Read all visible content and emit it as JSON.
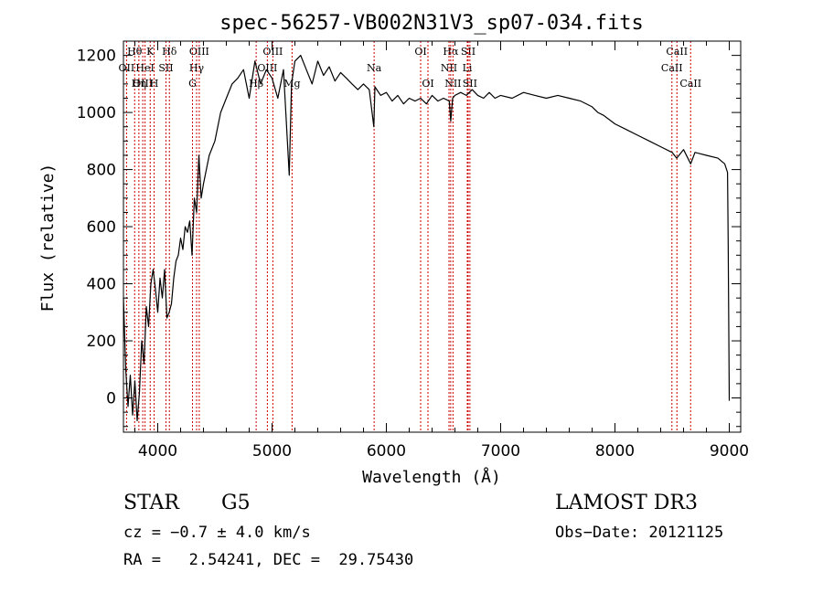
{
  "chart_data": {
    "type": "line",
    "title": "spec-56257-VB002N31V3_sp07-034.fits",
    "xlabel": "Wavelength (Å)",
    "ylabel": "Flux (relative)",
    "xlim": [
      3700,
      9100
    ],
    "ylim": [
      -120,
      1250
    ],
    "x_ticks": [
      4000,
      5000,
      6000,
      7000,
      8000,
      9000
    ],
    "y_ticks": [
      0,
      200,
      400,
      600,
      800,
      1000,
      1200
    ],
    "grid": false,
    "line_color": "#000000",
    "marker_color": "#cc0000",
    "series": [
      {
        "x": [
          3700,
          3720,
          3740,
          3760,
          3780,
          3800,
          3820,
          3840,
          3860,
          3880,
          3900,
          3920,
          3940,
          3960,
          3980,
          4000,
          4020,
          4040,
          4060,
          4080,
          4100,
          4120,
          4140,
          4160,
          4180,
          4200,
          4220,
          4240,
          4260,
          4280,
          4300,
          4320,
          4340,
          4360,
          4380,
          4400,
          4450,
          4500,
          4550,
          4600,
          4650,
          4700,
          4750,
          4800,
          4850,
          4900,
          4950,
          5000,
          5050,
          5100,
          5150,
          5170,
          5200,
          5250,
          5300,
          5350,
          5400,
          5450,
          5500,
          5550,
          5600,
          5650,
          5700,
          5750,
          5800,
          5850,
          5890,
          5900,
          5950,
          6000,
          6050,
          6100,
          6150,
          6200,
          6250,
          6300,
          6350,
          6400,
          6450,
          6500,
          6550,
          6563,
          6580,
          6600,
          6650,
          6700,
          6750,
          6800,
          6850,
          6900,
          6950,
          7000,
          7100,
          7200,
          7300,
          7400,
          7500,
          7600,
          7700,
          7800,
          7850,
          7900,
          8000,
          8100,
          8200,
          8300,
          8400,
          8500,
          8540,
          8600,
          8662,
          8700,
          8800,
          8900,
          8960,
          8985,
          8990,
          9000
        ],
        "y": [
          350,
          100,
          -30,
          80,
          -60,
          60,
          -80,
          20,
          200,
          120,
          320,
          250,
          400,
          450,
          380,
          300,
          420,
          350,
          450,
          280,
          300,
          330,
          420,
          480,
          500,
          560,
          520,
          600,
          580,
          620,
          500,
          700,
          650,
          850,
          700,
          750,
          850,
          900,
          1000,
          1050,
          1100,
          1120,
          1150,
          1050,
          1180,
          1100,
          1150,
          1120,
          1050,
          1150,
          780,
          1100,
          1180,
          1200,
          1150,
          1100,
          1180,
          1130,
          1160,
          1110,
          1140,
          1120,
          1100,
          1080,
          1100,
          1080,
          950,
          1090,
          1060,
          1070,
          1040,
          1060,
          1030,
          1050,
          1040,
          1050,
          1030,
          1060,
          1040,
          1050,
          1040,
          970,
          1050,
          1060,
          1070,
          1060,
          1080,
          1060,
          1050,
          1070,
          1050,
          1060,
          1050,
          1070,
          1060,
          1050,
          1060,
          1050,
          1040,
          1020,
          1000,
          990,
          960,
          940,
          920,
          900,
          880,
          860,
          840,
          870,
          820,
          860,
          850,
          840,
          820,
          790,
          550,
          -10
        ]
      }
    ],
    "line_markers": [
      {
        "label": "Hθ",
        "x": 3798,
        "row": 0
      },
      {
        "label": "OII",
        "x": 3727,
        "row": 1
      },
      {
        "label": "OIII",
        "x": 3869,
        "row": 2
      },
      {
        "label": "K",
        "x": 3934,
        "row": 0
      },
      {
        "label": "HeI",
        "x": 3889,
        "row": 1
      },
      {
        "label": "Hη",
        "x": 3835,
        "row": 2
      },
      {
        "label": "Hδ",
        "x": 4102,
        "row": 0
      },
      {
        "label": "SII",
        "x": 4072,
        "row": 1
      },
      {
        "label": "H",
        "x": 3968,
        "row": 2
      },
      {
        "label": "OIII",
        "x": 4363,
        "row": 0
      },
      {
        "label": "Hγ",
        "x": 4340,
        "row": 1
      },
      {
        "label": "G",
        "x": 4304,
        "row": 2
      },
      {
        "label": "OIII",
        "x": 5007,
        "row": 0
      },
      {
        "label": "OIII",
        "x": 4959,
        "row": 1
      },
      {
        "label": "Hβ",
        "x": 4861,
        "row": 2
      },
      {
        "label": "Mg",
        "x": 5175,
        "row": 2
      },
      {
        "label": "Na",
        "x": 5893,
        "row": 1
      },
      {
        "label": "OI",
        "x": 6300,
        "row": 0
      },
      {
        "label": "OI",
        "x": 6364,
        "row": 2
      },
      {
        "label": "Hα",
        "x": 6563,
        "row": 0
      },
      {
        "label": "NII",
        "x": 6548,
        "row": 1
      },
      {
        "label": "NII",
        "x": 6583,
        "row": 2
      },
      {
        "label": "SII",
        "x": 6716,
        "row": 0
      },
      {
        "label": "Li",
        "x": 6708,
        "row": 1
      },
      {
        "label": "SII",
        "x": 6731,
        "row": 2
      },
      {
        "label": "CaII",
        "x": 8542,
        "row": 0
      },
      {
        "label": "CaII",
        "x": 8498,
        "row": 1
      },
      {
        "label": "CaII",
        "x": 8662,
        "row": 2
      }
    ]
  },
  "info": {
    "object_class": "STAR",
    "subclass": "G5",
    "survey": "LAMOST DR3",
    "redshift": "cz = −0.7 ± 4.0 km/s",
    "obs_date": "Obs−Date: 20121125",
    "coords": "RA =   2.54241, DEC =  29.75430"
  }
}
